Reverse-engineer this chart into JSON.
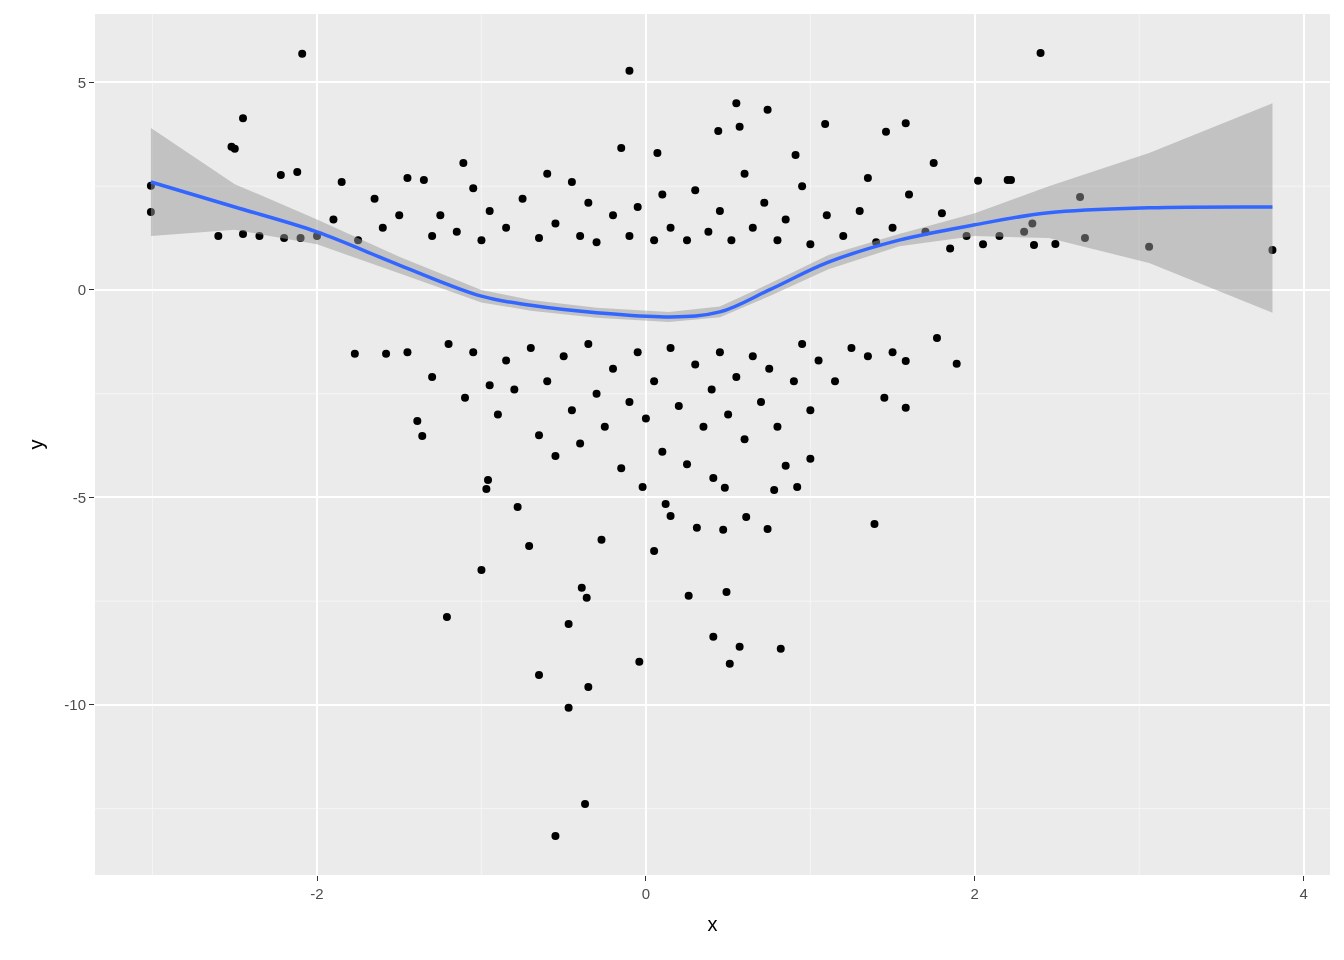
{
  "chart_data": {
    "type": "scatter",
    "xlabel": "x",
    "ylabel": "y",
    "xlim": [
      -3.35,
      4.16
    ],
    "ylim": [
      -14.1,
      6.65
    ],
    "xticks": [
      {
        "value": -3,
        "label": null
      },
      -2,
      {
        "value": -1,
        "label": null
      },
      0,
      {
        "value": 1,
        "label": null
      },
      2,
      {
        "value": 3,
        "label": null
      },
      4
    ],
    "yticks": [
      {
        "value": -12.5,
        "label": null
      },
      -10,
      {
        "value": -7.5,
        "label": null
      },
      -5,
      {
        "value": -2.5,
        "label": null
      },
      0,
      {
        "value": 2.5,
        "label": null
      },
      5
    ],
    "grid": true,
    "series": [
      {
        "color": "#000000",
        "marker": "circle",
        "x": [
          -2.09,
          2.4,
          -0.1,
          0.55,
          0.74,
          -2.45,
          -2.52,
          -2.5,
          1.09,
          1.58,
          0.57,
          0.44,
          1.46,
          -0.15,
          -3.01,
          -3.01,
          3.81,
          3.06,
          2.64,
          2.67,
          2.2,
          2.02,
          1.75,
          0.07,
          -1.11,
          -2.12,
          -2.22,
          0.91,
          2.36,
          2.49,
          -2.6,
          -2.45,
          -2.35,
          -2.2,
          -2.1,
          -2.0,
          -1.9,
          -1.85,
          -1.75,
          -1.65,
          -1.6,
          -1.5,
          -1.45,
          -1.35,
          -1.3,
          -1.25,
          -1.15,
          -1.05,
          -1.0,
          -0.95,
          -0.85,
          -0.75,
          -0.65,
          -0.6,
          -0.55,
          -0.45,
          -0.4,
          -0.35,
          -0.3,
          -0.2,
          -0.1,
          -0.05,
          0.05,
          0.1,
          0.15,
          0.25,
          0.3,
          0.38,
          0.45,
          0.52,
          0.6,
          0.65,
          0.72,
          0.8,
          0.85,
          0.95,
          1.0,
          1.1,
          1.2,
          1.3,
          1.35,
          1.4,
          1.5,
          1.6,
          1.7,
          1.8,
          1.85,
          1.95,
          2.05,
          2.15,
          2.22,
          2.3,
          2.35,
          -1.77,
          -1.58,
          1.77,
          1.89,
          1.58,
          1.58,
          1.39,
          -1.39,
          -1.36,
          -0.78,
          -0.71,
          -0.96,
          -0.97,
          -1.0,
          -1.21,
          -0.27,
          0.05,
          0.12,
          0.15,
          0.31,
          0.48,
          0.47,
          0.61,
          0.74,
          0.78,
          0.92,
          1.0,
          0.85,
          0.41,
          -0.02,
          -0.39,
          -0.36,
          -0.47,
          0.26,
          0.49,
          0.41,
          0.57,
          0.82,
          0.51,
          -0.04,
          -0.65,
          -0.35,
          -0.47,
          -0.37,
          -0.55,
          -1.45,
          -1.3,
          -1.2,
          -1.1,
          -1.05,
          -0.95,
          -0.9,
          -0.85,
          -0.8,
          -0.7,
          -0.65,
          -0.6,
          -0.55,
          -0.5,
          -0.45,
          -0.4,
          -0.35,
          -0.3,
          -0.25,
          -0.2,
          -0.15,
          -0.1,
          -0.05,
          0.0,
          0.05,
          0.1,
          0.15,
          0.2,
          0.25,
          0.3,
          0.35,
          0.4,
          0.45,
          0.5,
          0.55,
          0.6,
          0.65,
          0.7,
          0.75,
          0.8,
          0.9,
          0.95,
          1.0,
          1.05,
          1.15,
          1.25,
          1.35,
          1.45,
          1.5
        ],
        "values": [
          5.69,
          5.71,
          5.28,
          4.5,
          4.34,
          4.14,
          3.45,
          3.4,
          4.0,
          4.02,
          3.93,
          3.83,
          3.81,
          3.42,
          2.51,
          1.88,
          0.96,
          1.04,
          2.24,
          1.25,
          2.65,
          2.63,
          3.06,
          3.3,
          3.06,
          2.84,
          2.77,
          3.25,
          1.08,
          1.11,
          1.3,
          1.35,
          1.3,
          1.25,
          1.25,
          1.3,
          1.7,
          2.6,
          1.2,
          2.2,
          1.5,
          1.8,
          2.7,
          2.65,
          1.3,
          1.8,
          1.4,
          2.45,
          1.2,
          1.9,
          1.5,
          2.2,
          1.25,
          2.8,
          1.6,
          2.6,
          1.3,
          2.1,
          1.15,
          1.8,
          1.3,
          2.0,
          1.2,
          2.3,
          1.5,
          1.2,
          2.4,
          1.4,
          1.9,
          1.2,
          2.8,
          1.5,
          2.1,
          1.2,
          1.7,
          2.5,
          1.1,
          1.8,
          1.3,
          1.9,
          2.7,
          1.15,
          1.5,
          2.3,
          1.4,
          1.85,
          1.0,
          1.3,
          1.1,
          1.3,
          2.65,
          1.4,
          1.6,
          -1.54,
          -1.54,
          -1.16,
          -1.78,
          -1.71,
          -2.84,
          -5.64,
          -3.16,
          -3.52,
          -5.23,
          -6.17,
          -4.58,
          -4.8,
          -6.75,
          -7.88,
          -6.02,
          -6.29,
          -5.16,
          -5.45,
          -5.73,
          -4.77,
          -5.78,
          -5.47,
          -5.76,
          -4.82,
          -4.75,
          -4.07,
          -4.24,
          -4.53,
          -4.75,
          -7.18,
          -7.42,
          -8.05,
          -7.37,
          -7.28,
          -8.36,
          -8.6,
          -8.65,
          -9.01,
          -8.96,
          -9.28,
          -9.57,
          -10.07,
          -12.39,
          -13.16,
          -1.5,
          -2.1,
          -1.3,
          -2.6,
          -1.5,
          -2.3,
          -3.0,
          -1.7,
          -2.4,
          -1.4,
          -3.5,
          -2.2,
          -4.0,
          -1.6,
          -2.9,
          -3.7,
          -1.3,
          -2.5,
          -3.3,
          -1.9,
          -4.3,
          -2.7,
          -1.5,
          -3.1,
          -2.2,
          -3.9,
          -1.4,
          -2.8,
          -4.2,
          -1.8,
          -3.3,
          -2.4,
          -1.5,
          -3.0,
          -2.1,
          -3.6,
          -1.6,
          -2.7,
          -1.9,
          -3.3,
          -2.2,
          -1.3,
          -2.9,
          -1.7,
          -2.2,
          -1.4,
          -1.6,
          -2.6,
          -1.5
        ]
      },
      {
        "type": "line",
        "color": "#3366ff",
        "marker": "none",
        "line_style": "solid",
        "x": [
          -3.01,
          -2.5,
          -2.0,
          -1.5,
          -1.0,
          -0.7,
          -0.3,
          0.14,
          0.45,
          0.75,
          1.11,
          1.54,
          2.0,
          2.45,
          3.06,
          3.81
        ],
        "values": [
          2.6,
          2.0,
          1.4,
          0.6,
          -0.15,
          -0.37,
          -0.55,
          -0.65,
          -0.53,
          0.0,
          0.67,
          1.2,
          1.57,
          1.86,
          1.98,
          2.0
        ],
        "lower": [
          1.3,
          1.45,
          1.1,
          0.4,
          -0.3,
          -0.5,
          -0.67,
          -0.77,
          -0.66,
          -0.15,
          0.5,
          1.05,
          1.3,
          1.25,
          0.65,
          -0.55
        ],
        "upper": [
          3.9,
          2.55,
          1.7,
          0.8,
          0.0,
          -0.24,
          -0.43,
          -0.53,
          -0.4,
          0.15,
          0.84,
          1.35,
          1.85,
          2.5,
          3.3,
          4.5
        ]
      }
    ]
  }
}
